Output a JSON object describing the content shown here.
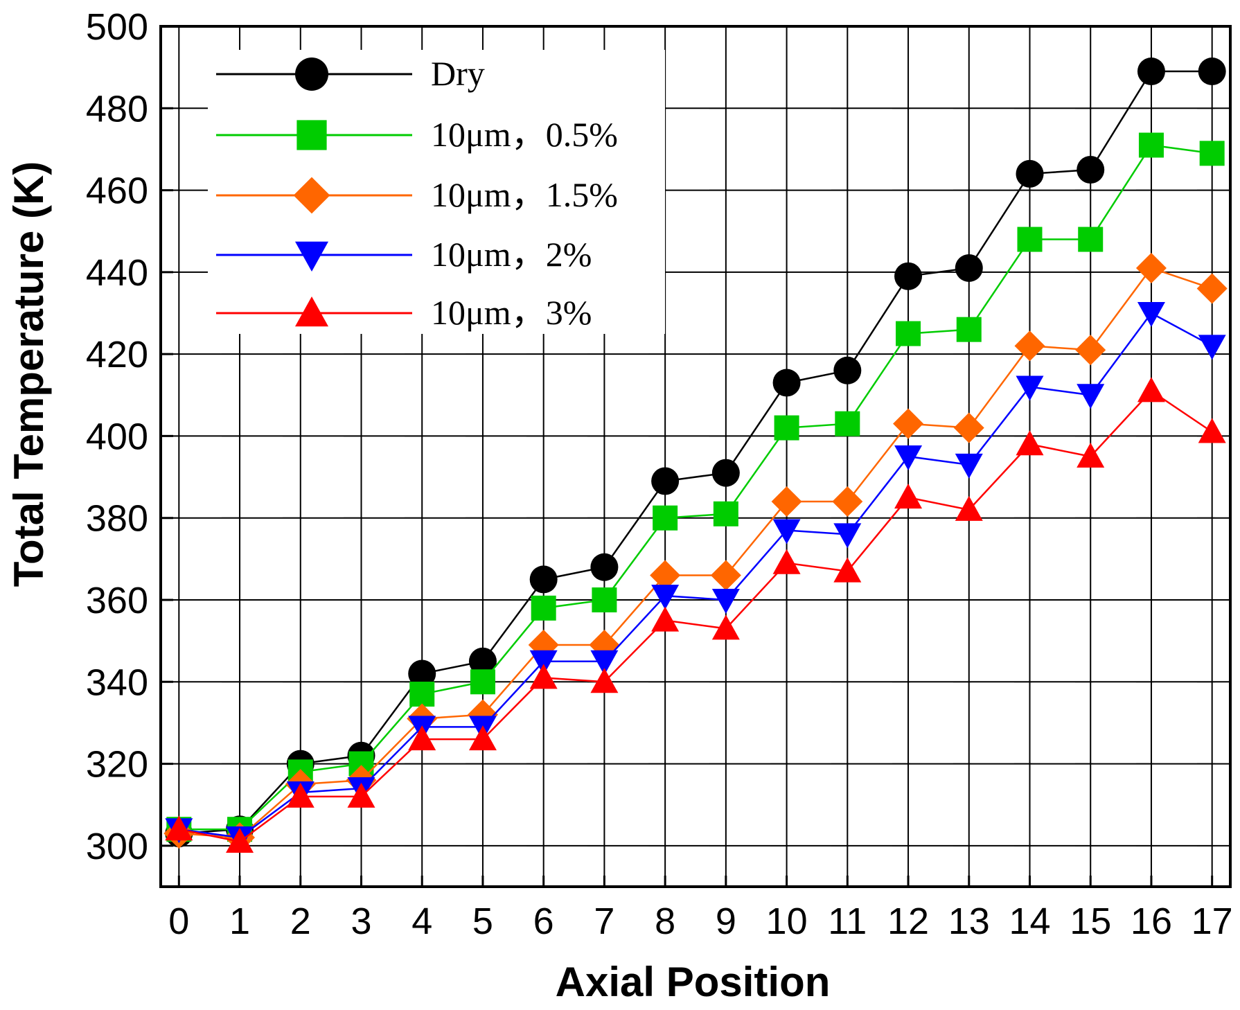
{
  "chart_data": {
    "type": "line",
    "title": "",
    "xlabel": "Axial Position",
    "ylabel": "Total Temperature (K)",
    "xlim": [
      -0.3,
      17.3
    ],
    "ylim": [
      290,
      500
    ],
    "grid": true,
    "x": [
      0,
      1,
      2,
      3,
      4,
      5,
      6,
      7,
      8,
      9,
      10,
      11,
      12,
      13,
      14,
      15,
      16,
      17
    ],
    "x_ticks": [
      "0",
      "1",
      "2",
      "3",
      "4",
      "5",
      "6",
      "7",
      "8",
      "9",
      "10",
      "11",
      "12",
      "13",
      "14",
      "15",
      "16",
      "17"
    ],
    "y_ticks": [
      300,
      320,
      340,
      360,
      380,
      400,
      420,
      440,
      460,
      480,
      500
    ],
    "y_tick_labels": [
      "300",
      "320",
      "340",
      "360",
      "380",
      "400",
      "420",
      "440",
      "460",
      "480",
      "500"
    ],
    "legend_position": "top-left",
    "series": [
      {
        "name": "Dry",
        "color": "#000000",
        "marker": "circle",
        "values": [
          303,
          304,
          320,
          322,
          342,
          345,
          365,
          368,
          389,
          391,
          413,
          416,
          439,
          441,
          464,
          465,
          489,
          489
        ]
      },
      {
        "name": "10μm，0.5%",
        "color": "#00cc00",
        "marker": "square",
        "values": [
          304,
          304,
          318,
          320,
          337,
          340,
          358,
          360,
          380,
          381,
          402,
          403,
          425,
          426,
          448,
          448,
          471,
          469
        ]
      },
      {
        "name": "10μm，1.5%",
        "color": "#ff6600",
        "marker": "diamond",
        "values": [
          303,
          302,
          315,
          316,
          331,
          332,
          349,
          349,
          366,
          366,
          384,
          384,
          403,
          402,
          422,
          421,
          441,
          436
        ]
      },
      {
        "name": "10μm，2%",
        "color": "#0000ff",
        "marker": "triangle-down",
        "values": [
          304,
          302,
          313,
          314,
          329,
          329,
          345,
          345,
          361,
          360,
          377,
          376,
          395,
          393,
          412,
          410,
          430,
          422
        ]
      },
      {
        "name": "10μm，3%",
        "color": "#ff0000",
        "marker": "triangle-up",
        "values": [
          304,
          301,
          312,
          312,
          326,
          326,
          341,
          340,
          355,
          353,
          369,
          367,
          385,
          382,
          398,
          395,
          411,
          401
        ]
      }
    ]
  }
}
